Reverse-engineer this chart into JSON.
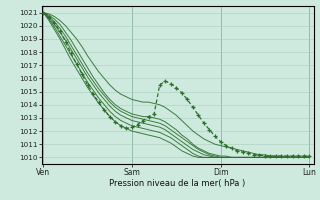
{
  "xlabel": "Pression niveau de la mer( hPa )",
  "background_color": "#ceeade",
  "grid_color": "#aaccbb",
  "line_color": "#2d6e2d",
  "ylim": [
    1009.5,
    1021.5
  ],
  "yticks": [
    1010,
    1011,
    1012,
    1013,
    1014,
    1015,
    1016,
    1017,
    1018,
    1019,
    1020,
    1021
  ],
  "xtick_labels": [
    "Ven",
    "Sam",
    "Dim",
    "Lun"
  ],
  "xtick_positions": [
    0,
    1,
    2,
    3
  ],
  "lines": [
    [
      1021.0,
      1020.9,
      1020.7,
      1020.4,
      1020.0,
      1019.5,
      1019.0,
      1018.4,
      1017.7,
      1017.1,
      1016.5,
      1016.0,
      1015.5,
      1015.1,
      1014.8,
      1014.6,
      1014.4,
      1014.3,
      1014.2,
      1014.2,
      1014.1,
      1014.0,
      1013.8,
      1013.5,
      1013.2,
      1012.8,
      1012.4,
      1012.0,
      1011.7,
      1011.4,
      1011.2,
      1011.0,
      1010.9,
      1010.8,
      1010.7,
      1010.6,
      1010.5,
      1010.4,
      1010.3,
      1010.2,
      1010.2,
      1010.1,
      1010.1,
      1010.1,
      1010.1,
      1010.1,
      1010.1,
      1010.1,
      1010.1
    ],
    [
      1021.0,
      1020.8,
      1020.5,
      1020.1,
      1019.5,
      1018.9,
      1018.2,
      1017.5,
      1016.8,
      1016.1,
      1015.5,
      1014.9,
      1014.4,
      1014.0,
      1013.7,
      1013.5,
      1013.3,
      1013.2,
      1013.1,
      1013.1,
      1013.0,
      1012.9,
      1012.7,
      1012.4,
      1012.1,
      1011.7,
      1011.4,
      1011.0,
      1010.7,
      1010.5,
      1010.3,
      1010.2,
      1010.1,
      1010.1,
      1010.0,
      1010.0,
      1010.0,
      1010.0,
      1010.0,
      1010.0,
      1010.0,
      1010.0,
      1010.0,
      1010.0,
      1010.0,
      1010.0,
      1010.0,
      1010.0,
      1010.0
    ],
    [
      1021.0,
      1020.7,
      1020.3,
      1019.8,
      1019.2,
      1018.5,
      1017.8,
      1017.1,
      1016.4,
      1015.8,
      1015.2,
      1014.7,
      1014.2,
      1013.8,
      1013.5,
      1013.3,
      1013.1,
      1013.0,
      1012.9,
      1012.8,
      1012.7,
      1012.6,
      1012.4,
      1012.1,
      1011.8,
      1011.5,
      1011.2,
      1010.9,
      1010.6,
      1010.4,
      1010.2,
      1010.1,
      1010.0,
      1010.0,
      1010.0,
      1010.0,
      1010.0,
      1010.0,
      1010.0,
      1010.0,
      1010.0,
      1010.0,
      1010.0,
      1010.0,
      1010.0,
      1010.0,
      1010.0,
      1010.0,
      1010.0
    ],
    [
      1021.0,
      1020.6,
      1020.1,
      1019.5,
      1018.9,
      1018.2,
      1017.5,
      1016.8,
      1016.1,
      1015.5,
      1014.9,
      1014.4,
      1013.9,
      1013.5,
      1013.2,
      1013.0,
      1012.8,
      1012.7,
      1012.6,
      1012.5,
      1012.4,
      1012.3,
      1012.1,
      1011.8,
      1011.5,
      1011.2,
      1010.9,
      1010.6,
      1010.4,
      1010.2,
      1010.1,
      1010.0,
      1010.0,
      1010.0,
      1010.0,
      1010.0,
      1010.0,
      1010.0,
      1010.0,
      1010.0,
      1010.0,
      1010.0,
      1010.0,
      1010.0,
      1010.0,
      1010.0,
      1010.0,
      1010.0,
      1010.0
    ],
    [
      1021.0,
      1020.5,
      1019.9,
      1019.2,
      1018.5,
      1017.8,
      1017.1,
      1016.4,
      1015.7,
      1015.1,
      1014.5,
      1014.0,
      1013.5,
      1013.1,
      1012.8,
      1012.6,
      1012.4,
      1012.3,
      1012.2,
      1012.1,
      1012.0,
      1011.9,
      1011.7,
      1011.5,
      1011.2,
      1010.9,
      1010.6,
      1010.3,
      1010.1,
      1010.0,
      1010.0,
      1010.0,
      1010.0,
      1010.0,
      1010.0,
      1010.0,
      1010.0,
      1010.0,
      1010.0,
      1010.0,
      1010.0,
      1010.0,
      1010.0,
      1010.0,
      1010.0,
      1010.0,
      1010.0,
      1010.0,
      1010.0
    ],
    [
      1021.0,
      1020.4,
      1019.7,
      1019.0,
      1018.2,
      1017.4,
      1016.7,
      1016.0,
      1015.3,
      1014.7,
      1014.1,
      1013.6,
      1013.1,
      1012.7,
      1012.4,
      1012.2,
      1012.0,
      1011.9,
      1011.8,
      1011.7,
      1011.6,
      1011.5,
      1011.3,
      1011.1,
      1010.8,
      1010.5,
      1010.3,
      1010.1,
      1010.0,
      1010.0,
      1010.0,
      1010.0,
      1010.0,
      1010.0,
      1010.0,
      1010.0,
      1010.0,
      1010.0,
      1010.0,
      1010.0,
      1010.0,
      1010.0,
      1010.0,
      1010.0,
      1010.0,
      1010.0,
      1010.0,
      1010.0,
      1010.0
    ]
  ],
  "marker_line": [
    1021.0,
    1020.7,
    1020.2,
    1019.6,
    1018.8,
    1017.9,
    1017.1,
    1016.3,
    1015.5,
    1014.8,
    1014.2,
    1013.6,
    1013.1,
    1012.7,
    1012.4,
    1012.2,
    1012.3,
    1012.5,
    1012.8,
    1013.1,
    1013.3,
    1015.5,
    1015.8,
    1015.6,
    1015.3,
    1014.9,
    1014.4,
    1013.8,
    1013.2,
    1012.6,
    1012.1,
    1011.6,
    1011.2,
    1010.9,
    1010.7,
    1010.5,
    1010.4,
    1010.3,
    1010.2,
    1010.2,
    1010.1,
    1010.1,
    1010.1,
    1010.1,
    1010.1,
    1010.1,
    1010.1,
    1010.1,
    1010.1
  ]
}
